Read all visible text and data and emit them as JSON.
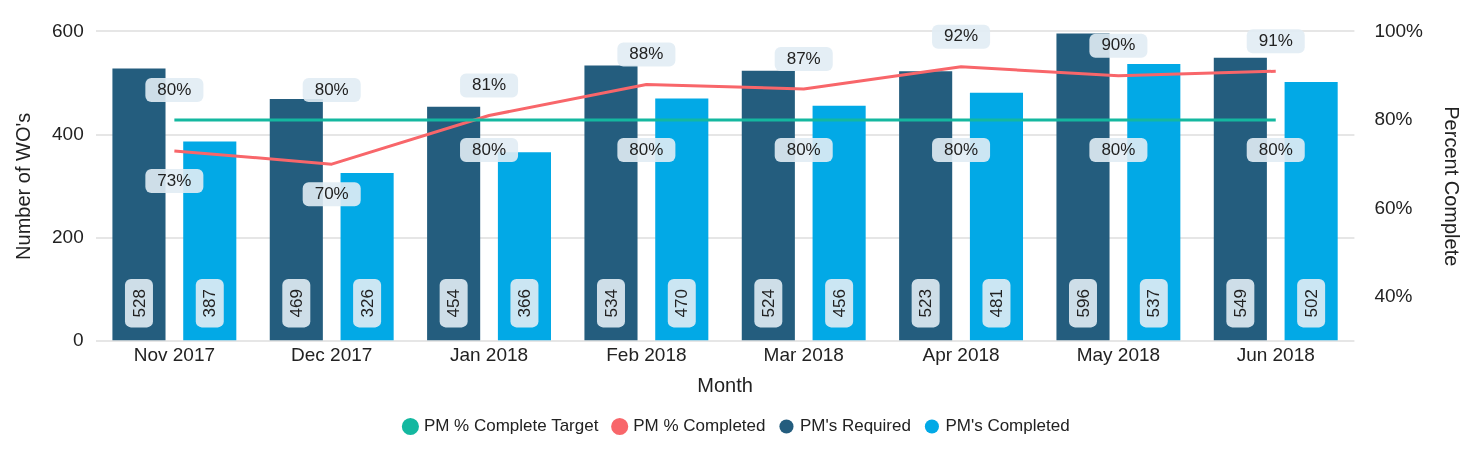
{
  "chart_data": {
    "type": "bar",
    "categories": [
      "Nov 2017",
      "Dec 2017",
      "Jan 2018",
      "Feb 2018",
      "Mar 2018",
      "Apr 2018",
      "May 2018",
      "Jun 2018"
    ],
    "series": [
      {
        "name": "PM's Required",
        "color": "#245d7e",
        "values": [
          528,
          469,
          454,
          534,
          524,
          523,
          596,
          549
        ],
        "value_labels": [
          "528",
          "469",
          "454",
          "534",
          "524",
          "523",
          "596",
          "549"
        ]
      },
      {
        "name": "PM's Completed",
        "color": "#02a9e6",
        "values": [
          387,
          326,
          366,
          470,
          456,
          481,
          537,
          502
        ],
        "value_labels": [
          "387",
          "326",
          "366",
          "470",
          "456",
          "481",
          "537",
          "502"
        ]
      },
      {
        "name": "PM % Complete Target",
        "type": "line",
        "axis": "y2",
        "color": "#14b8a0",
        "values": [
          80,
          80,
          80,
          80,
          80,
          80,
          80,
          80
        ],
        "value_labels": [
          "80%",
          "80%",
          "80%",
          "80%",
          "80%",
          "80%",
          "80%",
          "80%"
        ]
      },
      {
        "name": "PM % Completed",
        "type": "line",
        "axis": "y2",
        "color": "#f8666a",
        "values": [
          73,
          70,
          81,
          88,
          87,
          92,
          90,
          91
        ],
        "value_labels": [
          "73%",
          "70%",
          "81%",
          "88%",
          "87%",
          "92%",
          "90%",
          "91%"
        ]
      }
    ],
    "xlabel": "Month",
    "ylabel": "Number of WO's",
    "y2label": "Percent Complete",
    "ylim": [
      0,
      600
    ],
    "yticks": [
      0,
      200,
      400,
      600
    ],
    "y2lim": [
      30,
      100
    ],
    "y2ticks": [
      {
        "value": 40,
        "label": "40%"
      },
      {
        "value": 60,
        "label": "60%"
      },
      {
        "value": 80,
        "label": "80%"
      },
      {
        "value": 100,
        "label": "100%"
      }
    ],
    "grid": "y",
    "legend": "bottom",
    "marker": "none",
    "line_style": "solid"
  }
}
